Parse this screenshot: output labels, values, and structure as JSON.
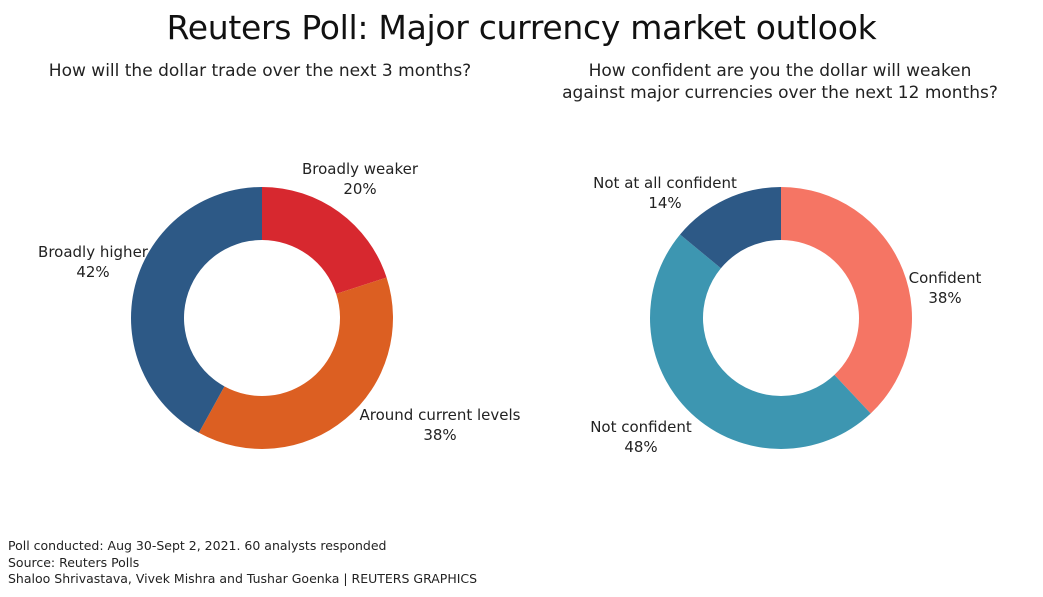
{
  "title": "Reuters Poll: Major currency market outlook",
  "chart_data": [
    {
      "type": "pie",
      "title": "How will the dollar trade over the next 3 months?",
      "slices": [
        {
          "label": "Broadly weaker",
          "value": 20,
          "value_label": "20%",
          "color": "#d7282f"
        },
        {
          "label": "Around current levels",
          "value": 38,
          "value_label": "38%",
          "color": "#dc5f22"
        },
        {
          "label": "Broadly higher",
          "value": 42,
          "value_label": "42%",
          "color": "#2d5986"
        }
      ]
    },
    {
      "type": "pie",
      "title": "How confident are you the dollar will weaken against major currencies over the next 12 months?",
      "title_lines": [
        "How confident are you the dollar will weaken",
        "against major currencies over the next 12 months?"
      ],
      "slices": [
        {
          "label": "Confident",
          "value": 38,
          "value_label": "38%",
          "color": "#f57564"
        },
        {
          "label": "Not confident",
          "value": 48,
          "value_label": "48%",
          "color": "#3d96b1"
        },
        {
          "label": "Not at all confident",
          "value": 14,
          "value_label": "14%",
          "color": "#2d5986"
        }
      ]
    }
  ],
  "footer": {
    "note": "Poll conducted: Aug 30-Sept 2, 2021. 60 analysts responded",
    "source": "Source: Reuters Polls",
    "credit": "Shaloo Shrivastava, Vivek Mishra and Tushar Goenka | REUTERS GRAPHICS"
  }
}
